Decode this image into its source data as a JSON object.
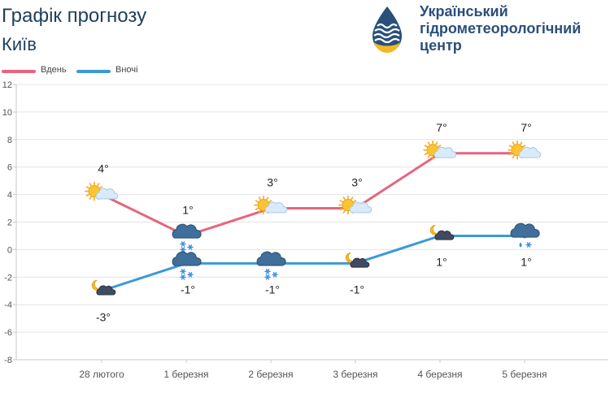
{
  "header": {
    "title": "Графік прогнозу",
    "city": "Київ"
  },
  "logo": {
    "line1": "Український",
    "line2": "гідрометеорологічний",
    "line3": "центр",
    "colors": {
      "blue": "#2a4f7a",
      "yellow": "#f2b824"
    }
  },
  "chart_data": {
    "type": "line",
    "categories": [
      "28 лютого",
      "1 березня",
      "2 березня",
      "3 березня",
      "4 березня",
      "5 березня"
    ],
    "series": [
      {
        "name": "Вдень",
        "color": "#e8647c",
        "values": [
          4,
          1,
          3,
          3,
          7,
          7
        ],
        "labels": [
          "4°",
          "1°",
          "3°",
          "3°",
          "7°",
          "7°"
        ],
        "icons": [
          "sun-cloud-icon",
          "cloud-snow-icon",
          "sun-cloud-icon",
          "sun-cloud-icon",
          "sun-cloud-icon",
          "sun-cloud-icon"
        ]
      },
      {
        "name": "Вночі",
        "color": "#3a9ad6",
        "values": [
          -3,
          -1,
          -1,
          -1,
          1,
          1
        ],
        "labels": [
          "-3°",
          "-1°",
          "-1°",
          "-1°",
          "1°",
          "1°"
        ],
        "icons": [
          "moon-cloud-icon",
          "cloud-snow-icon",
          "cloud-snow-icon",
          "moon-cloud-icon",
          "moon-cloud-icon",
          "cloud-rain-snow-icon"
        ]
      }
    ],
    "ylim": [
      -8,
      12
    ],
    "yticks": [
      -8,
      -6,
      -4,
      -2,
      0,
      2,
      4,
      6,
      8,
      10,
      12
    ],
    "grid": true,
    "legend": "top-left"
  }
}
